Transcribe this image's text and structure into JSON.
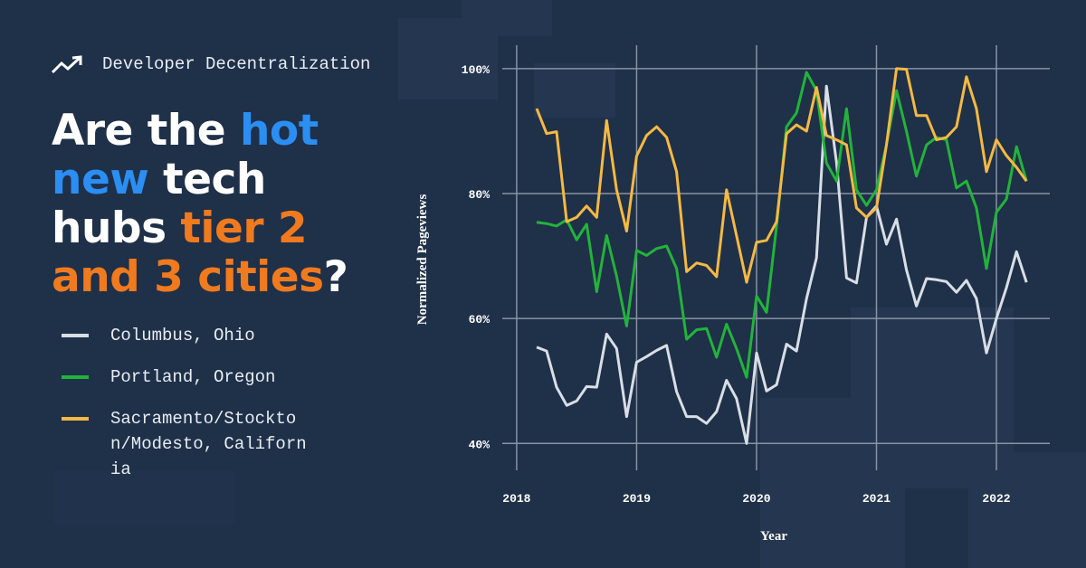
{
  "header": {
    "kicker": "Developer Decentralization",
    "headline": [
      [
        {
          "text": "Are the ",
          "color": "#ffffff"
        },
        {
          "text": "hot",
          "color": "#2b8ef2"
        }
      ],
      [
        {
          "text": "new",
          "color": "#2b8ef2"
        },
        {
          "text": " tech",
          "color": "#ffffff"
        }
      ],
      [
        {
          "text": "hubs ",
          "color": "#ffffff"
        },
        {
          "text": "tier 2",
          "color": "#f07a1e"
        }
      ],
      [
        {
          "text": "and 3 cities",
          "color": "#f07a1e"
        },
        {
          "text": "?",
          "color": "#ffffff"
        }
      ]
    ]
  },
  "chart_data": {
    "type": "line",
    "x_label": "Year",
    "y_label": "Normalized Pageviews",
    "x": [
      2018.167,
      2018.25,
      2018.333,
      2018.417,
      2018.5,
      2018.583,
      2018.667,
      2018.75,
      2018.833,
      2018.917,
      2019,
      2019.083,
      2019.167,
      2019.25,
      2019.333,
      2019.417,
      2019.5,
      2019.583,
      2019.667,
      2019.75,
      2019.833,
      2019.917,
      2020,
      2020.083,
      2020.167,
      2020.25,
      2020.333,
      2020.417,
      2020.5,
      2020.583,
      2020.667,
      2020.75,
      2020.833,
      2020.917,
      2021,
      2021.083,
      2021.167,
      2021.25,
      2021.333,
      2021.417,
      2021.5,
      2021.583,
      2021.667,
      2021.75,
      2021.833,
      2021.917,
      2022,
      2022.083,
      2022.167,
      2022.25
    ],
    "series": [
      {
        "name": "Columbus, Ohio",
        "color": "#d9dee5",
        "values": [
          55.4,
          54.8,
          49,
          46.1,
          46.8,
          49.1,
          49,
          57.5,
          55.2,
          44.3,
          53,
          53.9,
          54.9,
          55.7,
          48.3,
          44.3,
          44.3,
          43.2,
          45.1,
          50.1,
          47.2,
          40,
          54.5,
          48.4,
          49.4,
          55.9,
          54.8,
          63.2,
          69.7,
          97.2,
          84.9,
          66.5,
          65.7,
          76.2,
          78,
          71.9,
          75.9,
          67.8,
          62,
          66.4,
          66.2,
          65.9,
          64.2,
          66.1,
          63.2,
          54.5,
          60,
          64.9,
          70.7,
          65.8
        ]
      },
      {
        "name": "Portland, Oregon",
        "color": "#22b33a",
        "values": [
          75.4,
          75.2,
          74.8,
          75.8,
          72.6,
          75.1,
          64.3,
          73.3,
          66.8,
          58.8,
          70.9,
          70.1,
          71.2,
          71.6,
          68,
          56.7,
          58.2,
          58.4,
          53.8,
          59.1,
          55.2,
          50.6,
          63.6,
          61,
          74.8,
          90.7,
          92.9,
          99.4,
          96.5,
          84.9,
          82,
          93.6,
          80.6,
          78.1,
          80.6,
          87.8,
          96.5,
          90,
          82.8,
          87.8,
          89,
          88.6,
          80.9,
          82,
          77.7,
          68,
          77,
          79.1,
          87.5,
          82
        ]
      },
      {
        "name": "Sacramento/Stockton/Modesto, California",
        "color": "#f5b942",
        "values": [
          93.6,
          89.6,
          89.9,
          75.5,
          76.2,
          78,
          76.2,
          91.7,
          80.6,
          74,
          86,
          89.3,
          90.7,
          89,
          83.5,
          67.5,
          68.9,
          68.5,
          66.7,
          80.6,
          73.3,
          65.8,
          72.2,
          72.5,
          75.5,
          89.6,
          91,
          90,
          97,
          89.3,
          88.6,
          87.8,
          77.7,
          76.2,
          77.7,
          87.8,
          100,
          99.9,
          92.5,
          92.5,
          88.6,
          89,
          90.7,
          98.7,
          93.6,
          83.5,
          88.6,
          86.1,
          84.2,
          82
        ]
      }
    ],
    "xlim": [
      2017.88,
      2022.445
    ],
    "xticks": [
      2018,
      2019,
      2020,
      2021,
      2022
    ],
    "ylim": [
      35.7,
      102.3
    ],
    "yticks": [
      {
        "value": 40,
        "label": "40%"
      },
      {
        "value": 60,
        "label": "60%"
      },
      {
        "value": 80,
        "label": "80%"
      },
      {
        "value": 100,
        "label": "100%"
      }
    ],
    "grid": true
  }
}
